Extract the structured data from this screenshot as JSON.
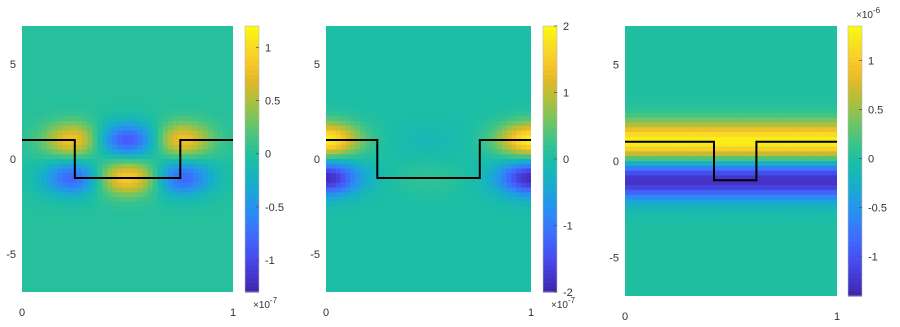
{
  "colormap": [
    "#3e26a8",
    "#4639d4",
    "#4751f1",
    "#3f6cfc",
    "#2d88f6",
    "#209fe0",
    "#16b2c2",
    "#1cbea6",
    "#3fc487",
    "#73c462",
    "#a9c03e",
    "#dbb929",
    "#f8c62a",
    "#f9de24",
    "#f9fb0e"
  ],
  "interface_color": "#000000",
  "chart_data": [
    {
      "type": "heatmap",
      "title": "",
      "xlabel": "",
      "ylabel": "",
      "xlim": [
        0,
        1
      ],
      "ylim": [
        -7,
        7
      ],
      "x_ticks": [
        0,
        1
      ],
      "x_tick_labels": [
        "0",
        "1"
      ],
      "y_ticks": [
        5,
        0,
        -5
      ],
      "y_tick_labels": [
        "5",
        "0",
        "-5"
      ],
      "field": {
        "kind": "antisymmetric",
        "sigma": 0.9,
        "edge_centers": [
          0.25,
          0.75
        ],
        "center_amp": 0.95,
        "edge_amp": 0.9,
        "rx": 0.14
      },
      "interface": {
        "x": [
          0,
          0.25,
          0.25,
          0.75,
          0.75,
          1
        ],
        "y": [
          1,
          1,
          -1,
          -1,
          1,
          1
        ]
      },
      "colorbar": {
        "clim": [
          -1.3,
          1.2
        ],
        "ticks": [
          1,
          0.5,
          0,
          -0.5,
          -1
        ],
        "tick_labels": [
          "1",
          "0.5",
          "0",
          "-0.5",
          "-1"
        ],
        "exponent": "×10",
        "exponent_power": "-7",
        "exponent_position": "bottom"
      }
    },
    {
      "type": "heatmap",
      "title": "",
      "xlabel": "",
      "ylabel": "",
      "xlim": [
        0,
        1
      ],
      "ylim": [
        -7,
        7
      ],
      "x_ticks": [
        0,
        1
      ],
      "x_tick_labels": [
        "0",
        "1"
      ],
      "y_ticks": [
        5,
        0,
        -5
      ],
      "y_tick_labels": [
        "5",
        "0",
        "-5"
      ],
      "field": {
        "kind": "edges_only",
        "sigma": 0.9,
        "edge_centers": [
          0.0,
          1.0
        ],
        "center_amp": 0.15,
        "edge_amp": 1.9,
        "rx": 0.16
      },
      "interface": {
        "x": [
          0,
          0.25,
          0.25,
          0.75,
          0.75,
          1
        ],
        "y": [
          1,
          1,
          -1,
          -1,
          1,
          1
        ]
      },
      "colorbar": {
        "clim": [
          -2,
          2
        ],
        "ticks": [
          2,
          1,
          0,
          -1,
          -2
        ],
        "tick_labels": [
          "2",
          "1",
          "0",
          "-1",
          "-2"
        ],
        "exponent": "×10",
        "exponent_power": "-7",
        "exponent_position": "bottom"
      }
    },
    {
      "type": "heatmap",
      "title": "",
      "xlabel": "",
      "ylabel": "",
      "xlim": [
        0,
        1
      ],
      "ylim": [
        -7,
        7
      ],
      "x_ticks": [
        0,
        1
      ],
      "x_tick_labels": [
        "0",
        "1"
      ],
      "y_ticks": [
        5,
        0,
        -5
      ],
      "y_tick_labels": [
        "5",
        "0",
        "-5"
      ],
      "field": {
        "kind": "horizontal_band",
        "sigma": 1.0,
        "amp": 1.3
      },
      "interface": {
        "x": [
          0,
          0.42,
          0.42,
          0.62,
          0.62,
          1
        ],
        "y": [
          1,
          1,
          -1,
          -1,
          1,
          1
        ]
      },
      "colorbar": {
        "clim": [
          -1.4,
          1.35
        ],
        "ticks": [
          1,
          0.5,
          0,
          -0.5,
          -1
        ],
        "tick_labels": [
          "1",
          "0.5",
          "0",
          "-0.5",
          "-1"
        ],
        "exponent": "×10",
        "exponent_power": "-6",
        "exponent_position": "top"
      }
    }
  ]
}
